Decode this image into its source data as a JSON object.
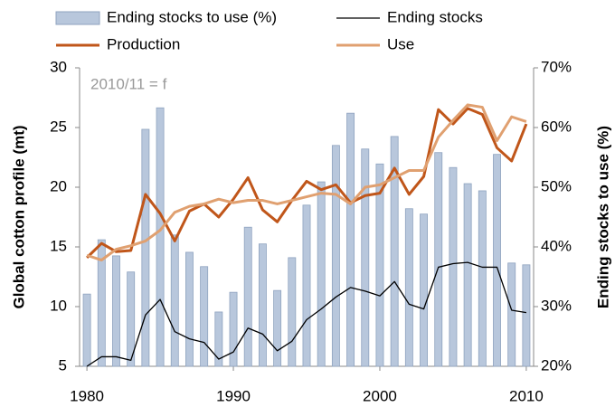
{
  "chart_data": {
    "type": "bar-line",
    "annotation": "2010/11 = f",
    "ylabel": "Global cotton profile (mt)",
    "y2label": "Ending stocks to use (%)",
    "x": [
      1980,
      1981,
      1982,
      1983,
      1984,
      1985,
      1986,
      1987,
      1988,
      1989,
      1990,
      1991,
      1992,
      1993,
      1994,
      1995,
      1996,
      1997,
      1998,
      1999,
      2000,
      2001,
      2002,
      2003,
      2004,
      2005,
      2006,
      2007,
      2008,
      2009,
      2010
    ],
    "xlim": [
      1979.5,
      2010.5
    ],
    "xticks": [
      1980,
      1990,
      2000,
      2010
    ],
    "ylim": [
      5,
      30
    ],
    "yticks": [
      5,
      10,
      15,
      20,
      25,
      30
    ],
    "y2lim": [
      20,
      70
    ],
    "y2ticks": [
      {
        "value": 20,
        "label": "20%"
      },
      {
        "value": 30,
        "label": "30%"
      },
      {
        "value": 40,
        "label": "40%"
      },
      {
        "value": 50,
        "label": "50%"
      },
      {
        "value": 60,
        "label": "60%"
      },
      {
        "value": 70,
        "label": "70%"
      }
    ],
    "series": [
      {
        "name": "Ending stocks to use (%)",
        "type": "bar",
        "axis": "y2",
        "color": "#b8c7dc",
        "values": [
          32.1,
          41.2,
          38.5,
          35.8,
          59.7,
          63.3,
          42,
          39.1,
          36.7,
          29.1,
          32.4,
          43.3,
          40.5,
          32.7,
          38.2,
          47,
          50.9,
          57,
          62.4,
          56.4,
          53.9,
          58.5,
          46.4,
          45.5,
          55.8,
          53.3,
          50.6,
          49.4,
          55.5,
          37.3,
          37
        ]
      },
      {
        "name": "Ending stocks",
        "type": "line",
        "color": "#000000",
        "width": 1.3,
        "values": [
          5.0,
          5.8,
          5.8,
          5.5,
          9.3,
          10.6,
          7.9,
          7.3,
          7.0,
          5.6,
          6.2,
          8.2,
          7.7,
          6.3,
          7.1,
          8.9,
          9.8,
          10.8,
          11.6,
          11.3,
          10.9,
          12.1,
          10.2,
          9.8,
          13.3,
          13.6,
          13.7,
          13.3,
          13.3,
          9.7,
          9.5
        ]
      },
      {
        "name": "Production",
        "type": "line",
        "color": "#c0561a",
        "width": 3,
        "values": [
          14.1,
          15.3,
          14.6,
          14.7,
          19.4,
          17.8,
          15.5,
          18.0,
          18.6,
          17.5,
          19.0,
          20.8,
          18.1,
          17.1,
          18.9,
          20.5,
          19.8,
          20.2,
          18.7,
          19.3,
          19.5,
          21.6,
          19.4,
          20.9,
          26.5,
          25.3,
          26.6,
          26.1,
          23.3,
          22.2,
          25.3
        ]
      },
      {
        "name": "Use",
        "type": "line",
        "color": "#e0a070",
        "width": 3,
        "values": [
          14.3,
          13.9,
          14.8,
          15.1,
          15.5,
          16.4,
          17.9,
          18.4,
          18.6,
          19.0,
          18.7,
          18.9,
          18.9,
          18.6,
          18.9,
          19.2,
          19.5,
          19.4,
          18.6,
          20.0,
          20.2,
          20.8,
          21.4,
          21.4,
          24.2,
          25.6,
          26.9,
          26.7,
          23.9,
          25.9,
          25.5
        ]
      }
    ]
  }
}
